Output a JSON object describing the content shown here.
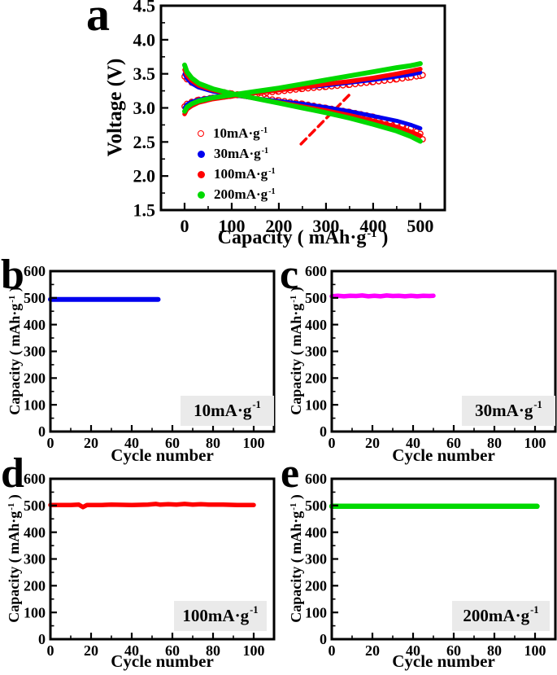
{
  "chart_data": [
    {
      "id": "a",
      "letter": "a",
      "type": "line",
      "xlabel": {
        "pre": "Capacity ( mAh·g",
        "sup": "-1",
        "post": " )"
      },
      "ylabel": {
        "pre": "Voltage (V)"
      },
      "xlim": [
        -50,
        552
      ],
      "ylim": [
        1.5,
        4.5
      ],
      "xticks": {
        "values": [
          0,
          100,
          200,
          300,
          400,
          500
        ],
        "labels": [
          "0",
          "100",
          "200",
          "300",
          "400",
          "500"
        ],
        "minor_step": 50
      },
      "yticks": {
        "values": [
          1.5,
          2.0,
          2.5,
          3.0,
          3.5,
          4.0,
          4.5
        ],
        "labels": [
          "1.5",
          "2.0",
          "2.5",
          "3.0",
          "3.5",
          "4.0",
          "4.5"
        ],
        "minor_step": 0.25
      },
      "grid": false,
      "legend_position": "lower-left-inside",
      "legend": [
        {
          "marker": "open-circle",
          "color": "#ff0000",
          "label": "10mA·g",
          "sup": "-1"
        },
        {
          "marker": "dot",
          "color": "#0000ee",
          "label": "30mA·g",
          "sup": "-1"
        },
        {
          "marker": "dot",
          "color": "#ff0000",
          "label": "100mA·g",
          "sup": "-1"
        },
        {
          "marker": "dot",
          "color": "#00d900",
          "label": "200mA·g",
          "sup": "-1"
        }
      ],
      "series": [
        {
          "name": "10mA·g-1 charge",
          "color": "#ff0000",
          "style": "open-circles",
          "r": 3.2,
          "step": 12,
          "points": [
            [
              0,
              3.02
            ],
            [
              5,
              3.06
            ],
            [
              15,
              3.09
            ],
            [
              30,
              3.12
            ],
            [
              60,
              3.15
            ],
            [
              100,
              3.18
            ],
            [
              150,
              3.21
            ],
            [
              200,
              3.24
            ],
            [
              250,
              3.28
            ],
            [
              300,
              3.31
            ],
            [
              350,
              3.34
            ],
            [
              400,
              3.38
            ],
            [
              450,
              3.42
            ],
            [
              480,
              3.45
            ],
            [
              500,
              3.47
            ],
            [
              505,
              3.48
            ]
          ]
        },
        {
          "name": "10mA·g-1 discharge",
          "color": "#ff0000",
          "style": "open-circles",
          "r": 3.2,
          "step": 12,
          "points": [
            [
              0,
              3.46
            ],
            [
              5,
              3.42
            ],
            [
              15,
              3.37
            ],
            [
              30,
              3.32
            ],
            [
              60,
              3.26
            ],
            [
              100,
              3.21
            ],
            [
              150,
              3.16
            ],
            [
              200,
              3.11
            ],
            [
              250,
              3.06
            ],
            [
              300,
              3.0
            ],
            [
              350,
              2.94
            ],
            [
              400,
              2.87
            ],
            [
              450,
              2.78
            ],
            [
              480,
              2.7
            ],
            [
              500,
              2.62
            ],
            [
              505,
              2.54
            ]
          ]
        },
        {
          "name": "30mA·g-1 charge",
          "color": "#0000ee",
          "style": "line",
          "width": 5,
          "points": [
            [
              0,
              3.0
            ],
            [
              5,
              3.05
            ],
            [
              15,
              3.09
            ],
            [
              30,
              3.12
            ],
            [
              60,
              3.16
            ],
            [
              100,
              3.19
            ],
            [
              150,
              3.23
            ],
            [
              200,
              3.26
            ],
            [
              250,
              3.3
            ],
            [
              300,
              3.33
            ],
            [
              350,
              3.37
            ],
            [
              400,
              3.41
            ],
            [
              450,
              3.46
            ],
            [
              480,
              3.49
            ],
            [
              500,
              3.52
            ]
          ]
        },
        {
          "name": "30mA·g-1 discharge",
          "color": "#0000ee",
          "style": "line",
          "width": 5,
          "points": [
            [
              0,
              3.5
            ],
            [
              5,
              3.43
            ],
            [
              15,
              3.36
            ],
            [
              30,
              3.3
            ],
            [
              60,
              3.24
            ],
            [
              100,
              3.19
            ],
            [
              150,
              3.14
            ],
            [
              200,
              3.1
            ],
            [
              250,
              3.06
            ],
            [
              300,
              3.01
            ],
            [
              350,
              2.95
            ],
            [
              400,
              2.88
            ],
            [
              450,
              2.81
            ],
            [
              480,
              2.75
            ],
            [
              500,
              2.7
            ]
          ]
        },
        {
          "name": "100mA·g-1 charge",
          "color": "#ff0000",
          "style": "line",
          "width": 5.5,
          "points": [
            [
              0,
              2.91
            ],
            [
              5,
              2.98
            ],
            [
              15,
              3.03
            ],
            [
              30,
              3.08
            ],
            [
              60,
              3.13
            ],
            [
              100,
              3.17
            ],
            [
              150,
              3.22
            ],
            [
              200,
              3.26
            ],
            [
              250,
              3.3
            ],
            [
              300,
              3.35
            ],
            [
              350,
              3.39
            ],
            [
              400,
              3.44
            ],
            [
              450,
              3.5
            ],
            [
              480,
              3.54
            ],
            [
              500,
              3.57
            ]
          ]
        },
        {
          "name": "100mA·g-1 discharge",
          "color": "#ff0000",
          "style": "line",
          "width": 5.5,
          "points": [
            [
              0,
              3.56
            ],
            [
              5,
              3.48
            ],
            [
              15,
              3.4
            ],
            [
              30,
              3.33
            ],
            [
              60,
              3.26
            ],
            [
              100,
              3.2
            ],
            [
              150,
              3.14
            ],
            [
              200,
              3.08
            ],
            [
              250,
              3.02
            ],
            [
              300,
              2.96
            ],
            [
              350,
              2.89
            ],
            [
              400,
              2.81
            ],
            [
              450,
              2.72
            ],
            [
              480,
              2.65
            ],
            [
              500,
              2.59
            ]
          ]
        },
        {
          "name": "200mA·g-1 charge",
          "color": "#00d900",
          "style": "line",
          "width": 6,
          "points": [
            [
              0,
              2.95
            ],
            [
              5,
              3.01
            ],
            [
              15,
              3.06
            ],
            [
              30,
              3.1
            ],
            [
              60,
              3.15
            ],
            [
              100,
              3.19
            ],
            [
              150,
              3.24
            ],
            [
              200,
              3.29
            ],
            [
              250,
              3.35
            ],
            [
              300,
              3.41
            ],
            [
              350,
              3.47
            ],
            [
              400,
              3.53
            ],
            [
              450,
              3.59
            ],
            [
              480,
              3.62
            ],
            [
              500,
              3.65
            ]
          ]
        },
        {
          "name": "200mA·g-1 discharge",
          "color": "#00d900",
          "style": "line",
          "width": 6,
          "points": [
            [
              0,
              3.63
            ],
            [
              5,
              3.53
            ],
            [
              15,
              3.44
            ],
            [
              30,
              3.36
            ],
            [
              60,
              3.28
            ],
            [
              100,
              3.21
            ],
            [
              150,
              3.14
            ],
            [
              200,
              3.07
            ],
            [
              250,
              3.0
            ],
            [
              300,
              2.93
            ],
            [
              350,
              2.85
            ],
            [
              400,
              2.76
            ],
            [
              450,
              2.66
            ],
            [
              480,
              2.58
            ],
            [
              500,
              2.51
            ]
          ]
        }
      ],
      "annotations": [
        {
          "type": "dashed-line",
          "from": [
            247,
            2.47
          ],
          "to": [
            355,
            3.23
          ],
          "color": "#ff0000",
          "width": 3.5,
          "dash": "9 6"
        }
      ]
    },
    {
      "id": "b",
      "letter": "b",
      "type": "line",
      "xlabel": {
        "pre": "Cycle number"
      },
      "ylabel": {
        "pre": "Capacity ( mAh·g",
        "sup": "-1",
        "post": " )"
      },
      "badge": {
        "pre": "10mA·g",
        "sup": "-1"
      },
      "xlim": [
        0,
        110
      ],
      "ylim": [
        0,
        600
      ],
      "xticks": {
        "values": [
          0,
          20,
          40,
          60,
          80,
          100
        ],
        "labels": [
          "0",
          "20",
          "40",
          "60",
          "80",
          "100"
        ],
        "minor_step": 10
      },
      "yticks": {
        "values": [
          0,
          100,
          200,
          300,
          400,
          500,
          600
        ],
        "labels": [
          "0",
          "100",
          "200",
          "300",
          "400",
          "500",
          "600"
        ],
        "minor_step": 50
      },
      "grid": false,
      "series": [
        {
          "name": "capacity at 10mA·g-1",
          "color": "#0000ee",
          "style": "line",
          "width": 6,
          "points": [
            [
              0,
              494
            ],
            [
              53,
              494
            ]
          ]
        }
      ]
    },
    {
      "id": "c",
      "letter": "c",
      "type": "line",
      "xlabel": {
        "pre": "Cycle number"
      },
      "ylabel": {
        "pre": "Capacity ( mAh·g",
        "sup": "-1",
        "post": " )"
      },
      "badge": {
        "pre": "30mA·g",
        "sup": "-1"
      },
      "xlim": [
        0,
        110
      ],
      "ylim": [
        0,
        600
      ],
      "xticks": {
        "values": [
          0,
          20,
          40,
          60,
          80,
          100
        ],
        "labels": [
          "0",
          "20",
          "40",
          "60",
          "80",
          "100"
        ],
        "minor_step": 10
      },
      "yticks": {
        "values": [
          0,
          100,
          200,
          300,
          400,
          500,
          600
        ],
        "labels": [
          "0",
          "100",
          "200",
          "300",
          "400",
          "500",
          "600"
        ],
        "minor_step": 50
      },
      "grid": false,
      "series": [
        {
          "name": "capacity at 30mA·g-1",
          "color": "#ff00ff",
          "style": "line",
          "width": 5.5,
          "points": [
            [
              0,
              506
            ],
            [
              3,
              508
            ],
            [
              6,
              506
            ],
            [
              9,
              508
            ],
            [
              12,
              507
            ],
            [
              15,
              509
            ],
            [
              18,
              506
            ],
            [
              21,
              508
            ],
            [
              24,
              506
            ],
            [
              27,
              509
            ],
            [
              30,
              507
            ],
            [
              33,
              508
            ],
            [
              36,
              506
            ],
            [
              39,
              508
            ],
            [
              42,
              506
            ],
            [
              45,
              508
            ],
            [
              48,
              507
            ],
            [
              50,
              508
            ]
          ]
        }
      ]
    },
    {
      "id": "d",
      "letter": "d",
      "type": "line",
      "xlabel": {
        "pre": "Cycle number"
      },
      "ylabel": {
        "pre": "Capacity ( mAh·g",
        "sup": "-1",
        "post": " )"
      },
      "badge": {
        "pre": "100mA·g",
        "sup": "-1"
      },
      "xlim": [
        0,
        110
      ],
      "ylim": [
        0,
        600
      ],
      "xticks": {
        "values": [
          0,
          20,
          40,
          60,
          80,
          100
        ],
        "labels": [
          "0",
          "20",
          "40",
          "60",
          "80",
          "100"
        ],
        "minor_step": 10
      },
      "yticks": {
        "values": [
          0,
          100,
          200,
          300,
          400,
          500,
          600
        ],
        "labels": [
          "0",
          "100",
          "200",
          "300",
          "400",
          "500",
          "600"
        ],
        "minor_step": 50
      },
      "grid": false,
      "series": [
        {
          "name": "capacity at 100mA·g-1",
          "color": "#ff0000",
          "style": "line",
          "width": 5.5,
          "points": [
            [
              0,
              502
            ],
            [
              5,
              502
            ],
            [
              10,
              502
            ],
            [
              14,
              503
            ],
            [
              16,
              494
            ],
            [
              18,
              502
            ],
            [
              25,
              502
            ],
            [
              30,
              503
            ],
            [
              40,
              502
            ],
            [
              48,
              503
            ],
            [
              52,
              506
            ],
            [
              54,
              503
            ],
            [
              58,
              505
            ],
            [
              62,
              503
            ],
            [
              66,
              506
            ],
            [
              70,
              503
            ],
            [
              74,
              505
            ],
            [
              78,
              503
            ],
            [
              85,
              503
            ],
            [
              92,
              502
            ],
            [
              100,
              502
            ]
          ]
        }
      ]
    },
    {
      "id": "e",
      "letter": "e",
      "type": "line",
      "xlabel": {
        "pre": "Cycle number"
      },
      "ylabel": {
        "pre": "Capacity ( mAh·g",
        "sup": "-1",
        "post": " )"
      },
      "badge": {
        "pre": "200mA·g",
        "sup": "-1"
      },
      "xlim": [
        0,
        110
      ],
      "ylim": [
        0,
        600
      ],
      "xticks": {
        "values": [
          0,
          20,
          40,
          60,
          80,
          100
        ],
        "labels": [
          "0",
          "20",
          "40",
          "60",
          "80",
          "100"
        ],
        "minor_step": 10
      },
      "yticks": {
        "values": [
          0,
          100,
          200,
          300,
          400,
          500,
          600
        ],
        "labels": [
          "0",
          "100",
          "200",
          "300",
          "400",
          "500",
          "600"
        ],
        "minor_step": 50
      },
      "grid": false,
      "series": [
        {
          "name": "capacity at 200mA·g-1",
          "color": "#00d900",
          "style": "line",
          "width": 6.5,
          "points": [
            [
              0,
              497
            ],
            [
              101,
              497
            ]
          ]
        }
      ]
    }
  ]
}
